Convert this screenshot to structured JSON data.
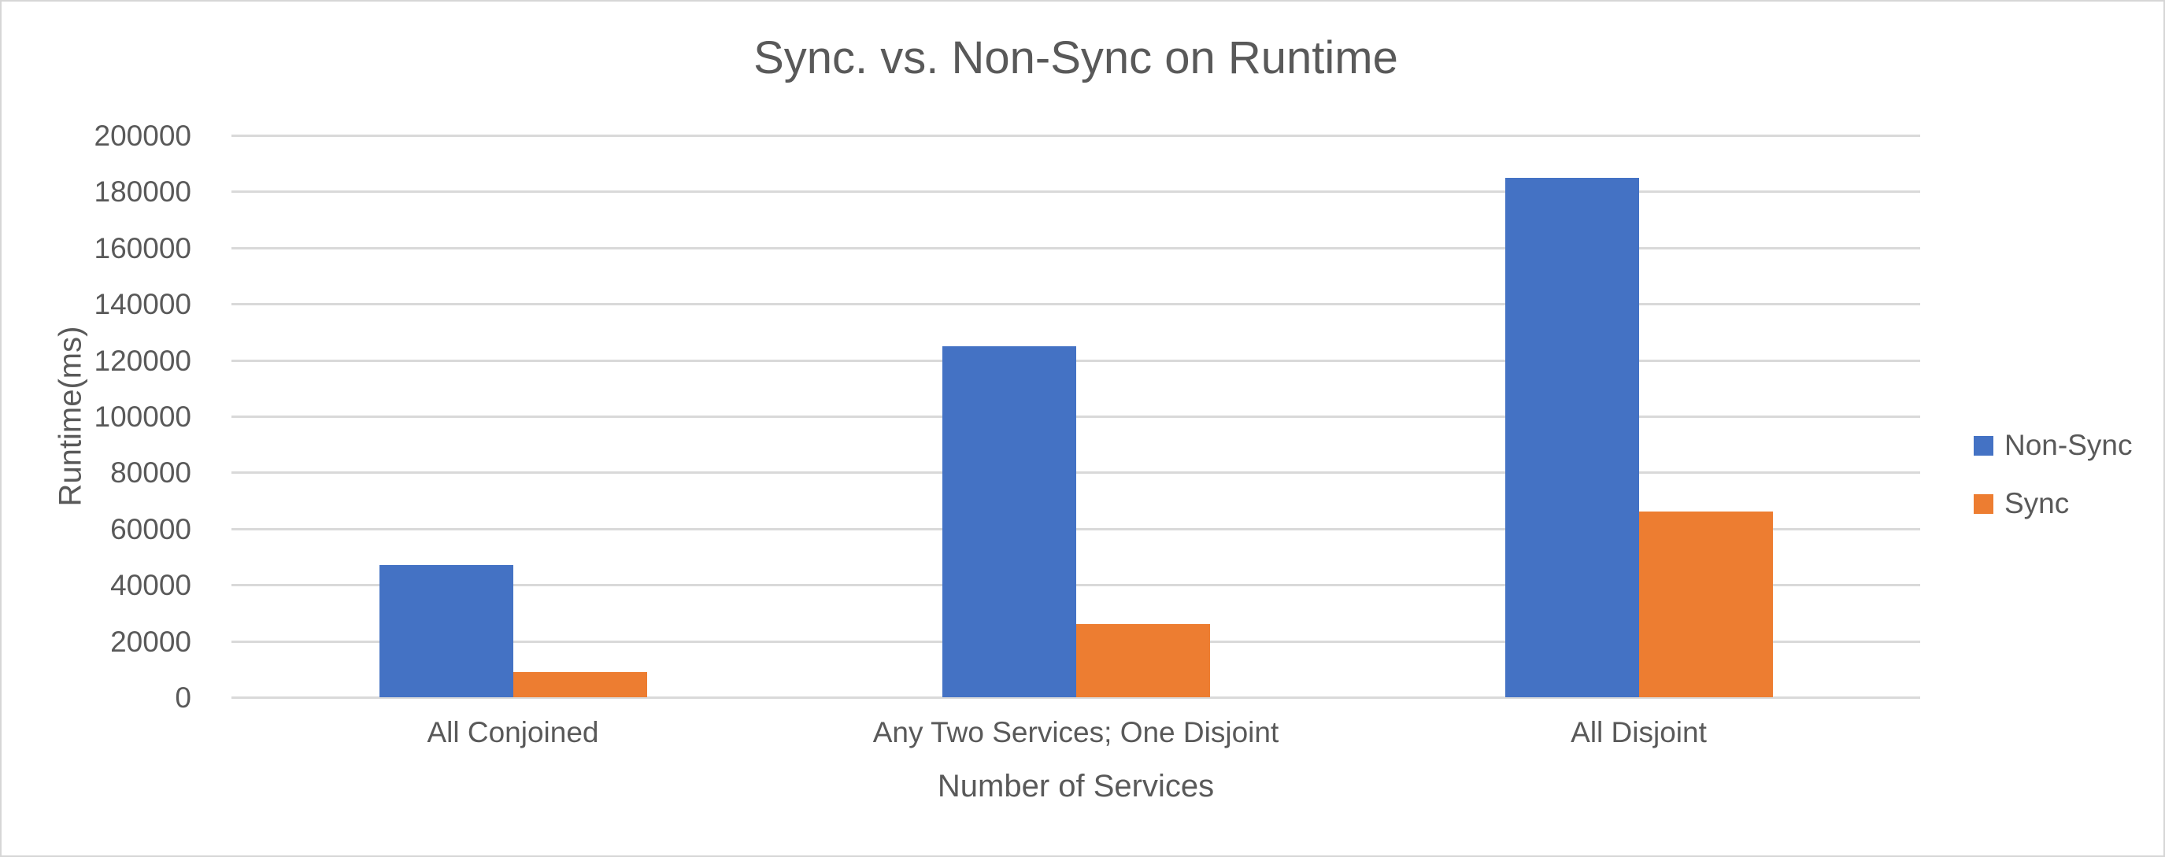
{
  "chart_data": {
    "type": "bar",
    "title": "Sync. vs. Non-Sync on Runtime",
    "xlabel": "Number of Services",
    "ylabel": "Runtime(ms)",
    "categories": [
      "All Conjoined",
      "Any Two Services; One Disjoint",
      "All Disjoint"
    ],
    "series": [
      {
        "name": "Non-Sync",
        "color": "#4472C4",
        "values": [
          47000,
          125000,
          185000
        ]
      },
      {
        "name": "Sync",
        "color": "#ED7D31",
        "values": [
          9000,
          26000,
          66000
        ]
      }
    ],
    "ylim": [
      0,
      200000
    ],
    "ytick_step": 20000,
    "yticks": [
      0,
      20000,
      40000,
      60000,
      80000,
      100000,
      120000,
      140000,
      160000,
      180000,
      200000
    ],
    "grid": true,
    "legend_position": "right",
    "colors": {
      "gridline": "#d9d9d9",
      "text": "#595959",
      "frame_border": "#d6d6d6",
      "background": "#ffffff"
    }
  }
}
